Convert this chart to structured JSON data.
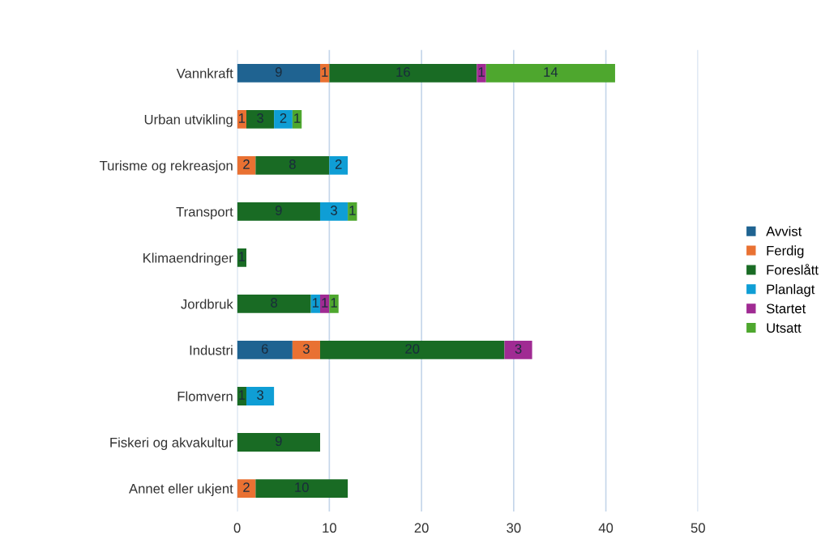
{
  "chart_data": {
    "type": "bar",
    "orientation": "horizontal",
    "stacked": true,
    "data_labels": true,
    "grid": "x",
    "legend": "right",
    "categories": [
      "Vannkraft",
      "Urban utvikling",
      "Turisme og rekreasjon",
      "Transport",
      "Klimaendringer",
      "Jordbruk",
      "Industri",
      "Flomvern",
      "Fiskeri og akvakultur",
      "Annet eller ukjent"
    ],
    "xlim": [
      0,
      50
    ],
    "xticks": [
      0,
      10,
      20,
      30,
      40,
      50
    ],
    "series": [
      {
        "name": "Avvist",
        "color": "#1f6391",
        "values": [
          9,
          null,
          null,
          null,
          null,
          null,
          6,
          null,
          null,
          null
        ]
      },
      {
        "name": "Ferdig",
        "color": "#e97132",
        "values": [
          1,
          1,
          2,
          null,
          null,
          null,
          3,
          null,
          null,
          2
        ]
      },
      {
        "name": "Foreslått",
        "color": "#196b24",
        "values": [
          16,
          3,
          8,
          9,
          1,
          8,
          20,
          1,
          9,
          10
        ]
      },
      {
        "name": "Planlagt",
        "color": "#0f9ed5",
        "values": [
          null,
          2,
          2,
          3,
          null,
          1,
          null,
          3,
          null,
          null
        ]
      },
      {
        "name": "Startet",
        "color": "#a02b93",
        "values": [
          1,
          null,
          null,
          null,
          null,
          1,
          3,
          null,
          null,
          null
        ]
      },
      {
        "name": "Utsatt",
        "color": "#4ea72e",
        "values": [
          14,
          1,
          null,
          1,
          null,
          1,
          null,
          null,
          null,
          null
        ]
      }
    ]
  }
}
